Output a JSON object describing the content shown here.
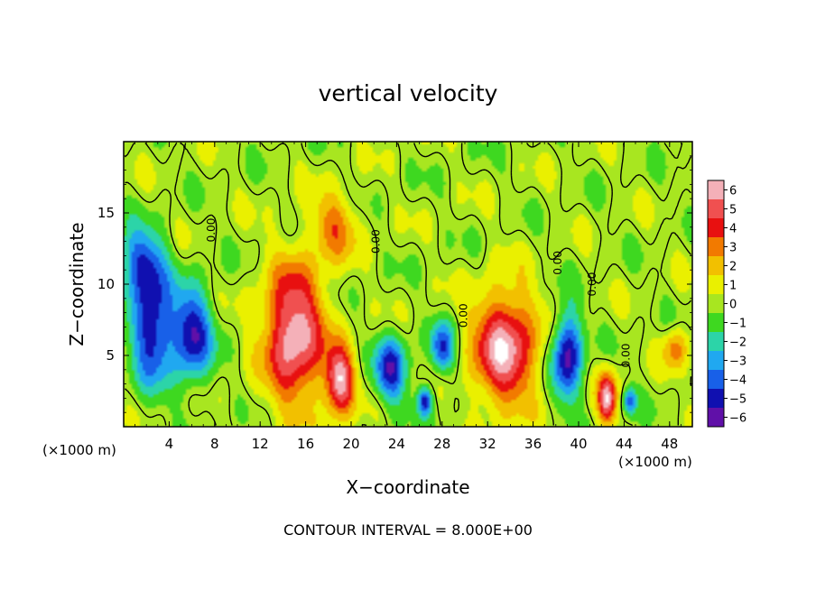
{
  "chart_data": {
    "type": "heatmap",
    "title": "vertical velocity",
    "xlabel": "X−coordinate",
    "ylabel": "Z−coordinate",
    "x_unit_left": "(×1000 m)",
    "x_unit_right": "(×1000 m)",
    "footer": "CONTOUR INTERVAL = 8.000E+00",
    "xlim": [
      0,
      50
    ],
    "ylim": [
      0,
      20
    ],
    "x_ticks": [
      4,
      8,
      12,
      16,
      20,
      24,
      28,
      32,
      36,
      40,
      44,
      48
    ],
    "x_tick_labels": [
      "4",
      "8",
      "12",
      "16",
      "20",
      "24",
      "28",
      "32",
      "36",
      "40",
      "44",
      "48"
    ],
    "y_ticks": [
      5,
      10,
      15
    ],
    "y_tick_labels": [
      "5",
      "10",
      "15"
    ],
    "contour_labels": [
      "0.00",
      "0.00",
      "0.00",
      "0.00",
      "0.00",
      "0.00"
    ],
    "colorbar": {
      "ticks": [
        6,
        5,
        4,
        3,
        2,
        1,
        0,
        -1,
        -2,
        -3,
        -4,
        -5,
        -6
      ],
      "tick_labels": [
        "6",
        "5",
        "4",
        "3",
        "2",
        "1",
        "0",
        "−1",
        "−2",
        "−3",
        "−4",
        "−5",
        "−6"
      ],
      "colors": [
        "#f4b0b8",
        "#f05050",
        "#e81010",
        "#f27a00",
        "#f2c000",
        "#eaf000",
        "#a8e620",
        "#3ed820",
        "#2cd4a8",
        "#20a8f0",
        "#1860e8",
        "#1010b0",
        "#6010a8"
      ]
    },
    "cells": [
      {
        "x": 2.5,
        "z": 7.0,
        "rx": 2.2,
        "rz": 5.0,
        "w": -5.5
      },
      {
        "x": 6.0,
        "z": 6.5,
        "rx": 2.2,
        "rz": 4.0,
        "w": -5.5
      },
      {
        "x": 1.5,
        "z": 11.5,
        "rx": 2.5,
        "rz": 3.0,
        "w": -4.0
      },
      {
        "x": 15.0,
        "z": 6.5,
        "rx": 3.3,
        "rz": 6.0,
        "w": 6.5
      },
      {
        "x": 19.0,
        "z": 3.2,
        "rx": 1.6,
        "rz": 3.0,
        "w": 6.2
      },
      {
        "x": 18.5,
        "z": 14.0,
        "rx": 2.5,
        "rz": 3.0,
        "w": 3.0
      },
      {
        "x": 23.5,
        "z": 4.0,
        "rx": 1.8,
        "rz": 2.8,
        "w": -5.0
      },
      {
        "x": 26.5,
        "z": 1.8,
        "rx": 0.8,
        "rz": 1.2,
        "w": -5.0
      },
      {
        "x": 28.0,
        "z": 5.5,
        "rx": 1.3,
        "rz": 2.2,
        "w": -4.5
      },
      {
        "x": 33.5,
        "z": 5.5,
        "rx": 3.5,
        "rz": 5.0,
        "w": 6.2
      },
      {
        "x": 39.0,
        "z": 5.0,
        "rx": 1.6,
        "rz": 3.8,
        "w": -6.0
      },
      {
        "x": 42.5,
        "z": 2.0,
        "rx": 1.0,
        "rz": 2.3,
        "w": 6.2
      },
      {
        "x": 44.5,
        "z": 1.8,
        "rx": 0.7,
        "rz": 1.2,
        "w": -4.0
      },
      {
        "x": 48.5,
        "z": 5.5,
        "rx": 1.3,
        "rz": 1.8,
        "w": 3.0
      }
    ],
    "contour_level": 0,
    "dashed_contours": "negative",
    "grid": false
  }
}
